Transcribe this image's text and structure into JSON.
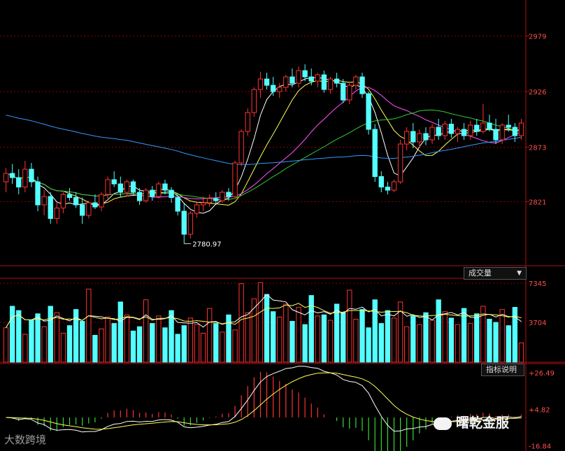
{
  "chart_data": {
    "type": "candlestick",
    "price_panel": {
      "y_ticks": [
        "2979",
        "2926",
        "2873",
        "2821"
      ],
      "ylim": [
        2760,
        3000
      ],
      "annotation": "2780.97",
      "candles": [
        [
          2840,
          2853,
          2830,
          2848
        ],
        [
          2848,
          2857,
          2838,
          2844
        ],
        [
          2844,
          2852,
          2828,
          2835
        ],
        [
          2835,
          2860,
          2830,
          2852
        ],
        [
          2852,
          2858,
          2835,
          2840
        ],
        [
          2840,
          2845,
          2812,
          2818
        ],
        [
          2818,
          2832,
          2808,
          2826
        ],
        [
          2826,
          2830,
          2800,
          2805
        ],
        [
          2805,
          2820,
          2800,
          2815
        ],
        [
          2815,
          2830,
          2810,
          2828
        ],
        [
          2828,
          2834,
          2822,
          2825
        ],
        [
          2825,
          2830,
          2815,
          2818
        ],
        [
          2818,
          2825,
          2800,
          2808
        ],
        [
          2808,
          2822,
          2805,
          2820
        ],
        [
          2820,
          2828,
          2814,
          2816
        ],
        [
          2816,
          2830,
          2812,
          2828
        ],
        [
          2828,
          2845,
          2824,
          2842
        ],
        [
          2842,
          2850,
          2835,
          2838
        ],
        [
          2838,
          2845,
          2825,
          2830
        ],
        [
          2830,
          2842,
          2826,
          2840
        ],
        [
          2840,
          2842,
          2828,
          2830
        ],
        [
          2830,
          2834,
          2818,
          2822
        ],
        [
          2822,
          2834,
          2820,
          2832
        ],
        [
          2832,
          2836,
          2822,
          2826
        ],
        [
          2826,
          2840,
          2824,
          2838
        ],
        [
          2838,
          2842,
          2828,
          2832
        ],
        [
          2832,
          2835,
          2820,
          2825
        ],
        [
          2825,
          2828,
          2808,
          2812
        ],
        [
          2812,
          2820,
          2780.97,
          2790
        ],
        [
          2790,
          2812,
          2786,
          2810
        ],
        [
          2810,
          2820,
          2806,
          2818
        ],
        [
          2818,
          2826,
          2812,
          2820
        ],
        [
          2820,
          2828,
          2816,
          2824
        ],
        [
          2824,
          2830,
          2818,
          2822
        ],
        [
          2822,
          2832,
          2820,
          2830
        ],
        [
          2830,
          2834,
          2822,
          2826
        ],
        [
          2826,
          2860,
          2824,
          2858
        ],
        [
          2858,
          2890,
          2855,
          2888
        ],
        [
          2888,
          2910,
          2884,
          2906
        ],
        [
          2906,
          2930,
          2902,
          2928
        ],
        [
          2928,
          2945,
          2920,
          2938
        ],
        [
          2938,
          2944,
          2928,
          2932
        ],
        [
          2932,
          2940,
          2922,
          2926
        ],
        [
          2926,
          2934,
          2920,
          2930
        ],
        [
          2930,
          2942,
          2926,
          2940
        ],
        [
          2940,
          2948,
          2930,
          2934
        ],
        [
          2934,
          2950,
          2930,
          2946
        ],
        [
          2946,
          2952,
          2936,
          2940
        ],
        [
          2940,
          2948,
          2932,
          2936
        ],
        [
          2936,
          2944,
          2930,
          2942
        ],
        [
          2942,
          2946,
          2925,
          2928
        ],
        [
          2928,
          2940,
          2924,
          2938
        ],
        [
          2938,
          2944,
          2930,
          2934
        ],
        [
          2934,
          2938,
          2915,
          2918
        ],
        [
          2918,
          2934,
          2914,
          2932
        ],
        [
          2932,
          2942,
          2928,
          2940
        ],
        [
          2940,
          2944,
          2920,
          2924
        ],
        [
          2924,
          2926,
          2885,
          2890
        ],
        [
          2890,
          2895,
          2840,
          2845
        ],
        [
          2845,
          2850,
          2830,
          2835
        ],
        [
          2835,
          2840,
          2828,
          2832
        ],
        [
          2832,
          2842,
          2830,
          2840
        ],
        [
          2840,
          2880,
          2838,
          2876
        ],
        [
          2876,
          2892,
          2870,
          2888
        ],
        [
          2888,
          2896,
          2872,
          2878
        ],
        [
          2878,
          2890,
          2872,
          2886
        ],
        [
          2886,
          2892,
          2875,
          2880
        ],
        [
          2880,
          2895,
          2876,
          2892
        ],
        [
          2892,
          2900,
          2880,
          2884
        ],
        [
          2884,
          2898,
          2880,
          2895
        ],
        [
          2895,
          2900,
          2882,
          2886
        ],
        [
          2886,
          2892,
          2878,
          2890
        ],
        [
          2890,
          2896,
          2880,
          2884
        ],
        [
          2884,
          2898,
          2880,
          2894
        ],
        [
          2894,
          2900,
          2884,
          2888
        ],
        [
          2888,
          2914,
          2886,
          2896
        ],
        [
          2896,
          2904,
          2888,
          2890
        ],
        [
          2890,
          2900,
          2876,
          2880
        ],
        [
          2880,
          2896,
          2876,
          2894
        ],
        [
          2894,
          2904,
          2888,
          2892
        ],
        [
          2892,
          2896,
          2878,
          2884
        ],
        [
          2884,
          2900,
          2880,
          2896
        ]
      ]
    },
    "volume_panel": {
      "label": "成交量",
      "y_ticks": [
        "7345",
        "3704"
      ],
      "ylim": [
        0,
        7800
      ],
      "values": [
        3200,
        5200,
        4800,
        2600,
        3900,
        4500,
        3300,
        5200,
        4600,
        2700,
        3400,
        4900,
        3800,
        6800,
        2500,
        3100,
        4200,
        3600,
        5600,
        4400,
        2900,
        3300,
        5800,
        3600,
        4300,
        3200,
        4800,
        2600,
        3400,
        4100,
        3500,
        2700,
        5000,
        3600,
        2800,
        4400,
        3000,
        7300,
        4600,
        5900,
        7400,
        6300,
        4700,
        4200,
        5400,
        3800,
        5100,
        3500,
        6200,
        4300,
        4400,
        3900,
        5400,
        4600,
        6700,
        4000,
        4900,
        3200,
        5800,
        3600,
        4800,
        4100,
        5600,
        3300,
        4300,
        3500,
        4600,
        3900,
        5800,
        4700,
        4100,
        3500,
        5000,
        3600,
        4500,
        5200,
        4000,
        3700,
        4900,
        3400,
        5100,
        1800
      ]
    },
    "indicator_panel": {
      "label": "指标说明",
      "y_ticks": [
        "+26.49",
        "+4.82",
        "-16.84"
      ],
      "ylim": [
        -17,
        27
      ]
    }
  },
  "watermarks": {
    "left": "大数跨境",
    "right": "曙乾金服"
  }
}
